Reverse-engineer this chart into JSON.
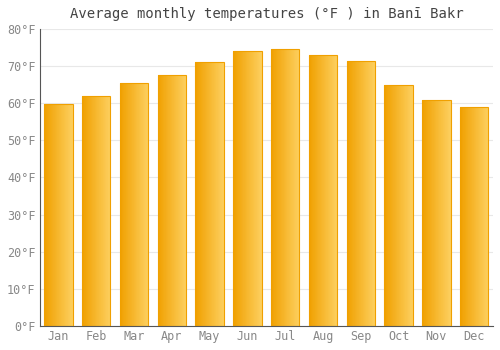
{
  "title": "Average monthly temperatures (°F ) in Banī Bakr",
  "months": [
    "Jan",
    "Feb",
    "Mar",
    "Apr",
    "May",
    "Jun",
    "Jul",
    "Aug",
    "Sep",
    "Oct",
    "Nov",
    "Dec"
  ],
  "values": [
    59.9,
    62.0,
    65.5,
    67.5,
    71.0,
    74.0,
    74.5,
    73.0,
    71.5,
    65.0,
    61.0,
    59.0
  ],
  "bar_color_left": "#F0A000",
  "bar_color_right": "#FDD060",
  "background_color": "#FFFFFF",
  "grid_color": "#E8E8E8",
  "text_color": "#888888",
  "ylim": [
    0,
    80
  ],
  "ytick_step": 10,
  "title_fontsize": 10,
  "tick_fontsize": 8.5,
  "bar_width": 0.75
}
